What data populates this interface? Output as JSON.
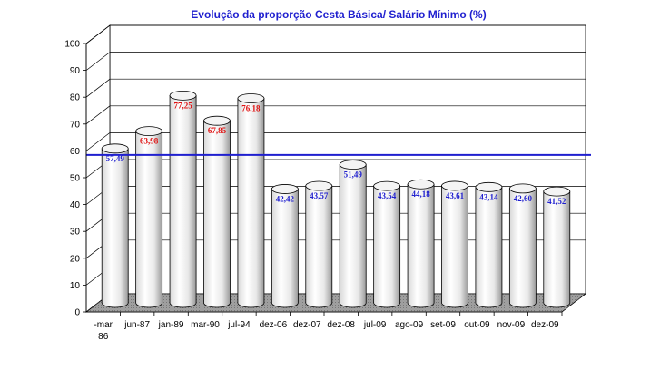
{
  "chart_data": {
    "type": "bar",
    "title": "Evolução da proporção Cesta Básica/ Salário Mínimo (%)",
    "xlabel": "",
    "ylabel": "",
    "ylim": [
      0,
      100
    ],
    "yticks": [
      "0",
      "10",
      "20",
      "30",
      "40",
      "50",
      "60",
      "70",
      "80",
      "90",
      "100"
    ],
    "categories": [
      "mar 86",
      "jun-87",
      "jan-89",
      "mar-90",
      "jul-94",
      "dez-06",
      "dez-07",
      "dez-08",
      "jul-09",
      "ago-09",
      "set-09",
      "out-09",
      "nov-09",
      "dez-09"
    ],
    "category_lines": [
      [
        "-mar",
        "86"
      ],
      [
        "jun-87"
      ],
      [
        "jan-89"
      ],
      [
        "mar-90"
      ],
      [
        "jul-94"
      ],
      [
        "dez-06"
      ],
      [
        "dez-07"
      ],
      [
        "dez-08"
      ],
      [
        "jul-09"
      ],
      [
        "ago-09"
      ],
      [
        "set-09"
      ],
      [
        "out-09"
      ],
      [
        "nov-09"
      ],
      [
        "dez-09"
      ]
    ],
    "values": [
      57.49,
      63.98,
      77.25,
      67.85,
      76.18,
      42.42,
      43.57,
      51.49,
      43.54,
      44.18,
      43.61,
      43.14,
      42.6,
      41.52
    ],
    "data_labels": [
      "57,49",
      "63,98",
      "77,25",
      "67,85",
      "76,18",
      "42,42",
      "43,57",
      "51,49",
      "43,54",
      "44,18",
      "43,61",
      "43,14",
      "42,60",
      "41,52"
    ],
    "label_colors": [
      "#1f1fcf",
      "#e01010",
      "#e01010",
      "#e01010",
      "#e01010",
      "#1f1fcf",
      "#1f1fcf",
      "#1f1fcf",
      "#1f1fcf",
      "#1f1fcf",
      "#1f1fcf",
      "#1f1fcf",
      "#1f1fcf",
      "#1f1fcf"
    ],
    "reference_line": {
      "value": 58.5,
      "color": "#1f1fcf"
    },
    "bar_fill": "#ffffff",
    "floor_color": "#a0a0a0",
    "grid": true,
    "legend": "none"
  }
}
